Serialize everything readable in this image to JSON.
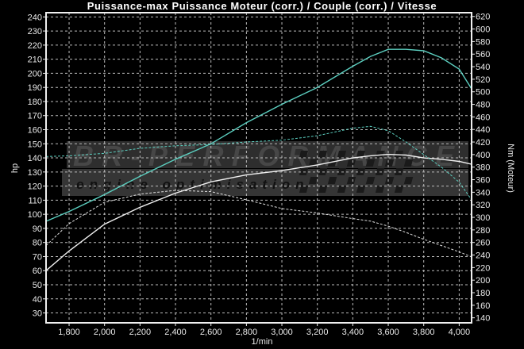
{
  "chart_data": {
    "type": "line",
    "title": "Puissance-max Puissance Moteur (corr.) / Couple (corr.) / Vitesse",
    "xlabel": "1/min",
    "ylabel": "hp",
    "y2label": "Nm (Moteur)",
    "xlim": [
      1670,
      4070
    ],
    "ylim": [
      23,
      243
    ],
    "y2lim": [
      132,
      626
    ],
    "grid": true,
    "x_ticks": [
      1800,
      2000,
      2200,
      2400,
      2600,
      2800,
      3000,
      3200,
      3400,
      3600,
      3800,
      4000
    ],
    "x_tick_labels": [
      "1,800",
      "2,000",
      "2,200",
      "2,400",
      "2,600",
      "2,800",
      "3,000",
      "3,200",
      "3,400",
      "3,600",
      "3,800",
      "4,000"
    ],
    "y_ticks": [
      30,
      40,
      50,
      60,
      70,
      80,
      90,
      100,
      110,
      120,
      130,
      140,
      150,
      160,
      170,
      180,
      190,
      200,
      210,
      220,
      230,
      240
    ],
    "y_tick_labels": [
      "30",
      "40",
      "50",
      "60",
      "70",
      "80",
      "90",
      "100",
      "110",
      "120",
      "130",
      "140",
      "150",
      "160",
      "170",
      "180",
      "190",
      "200",
      "210",
      "220",
      "230",
      "240"
    ],
    "y2_ticks": [
      140,
      160,
      180,
      200,
      220,
      240,
      260,
      280,
      300,
      320,
      340,
      360,
      380,
      400,
      420,
      440,
      460,
      480,
      500,
      520,
      540,
      560,
      580,
      600,
      620
    ],
    "y2_tick_labels": [
      "140",
      "160",
      "180",
      "200",
      "220",
      "240",
      "260",
      "280",
      "300",
      "320",
      "340",
      "360",
      "380",
      "400",
      "420",
      "440",
      "460",
      "480",
      "500",
      "520",
      "540",
      "560",
      "580",
      "600",
      "620"
    ],
    "x": [
      1670,
      1800,
      2000,
      2200,
      2400,
      2600,
      2800,
      3000,
      3200,
      3400,
      3500,
      3600,
      3700,
      3800,
      3900,
      4000,
      4070
    ],
    "series": [
      {
        "axis": "left",
        "style": "solid",
        "color": "#5ccfc0",
        "values": [
          95,
          102,
          114,
          127,
          139,
          150,
          165,
          178,
          190,
          205,
          212,
          217,
          217,
          216,
          211,
          203,
          189
        ]
      },
      {
        "axis": "left",
        "style": "solid",
        "color": "#f0f0f0",
        "values": [
          60,
          74,
          93,
          105,
          115,
          123,
          128,
          131,
          135,
          140,
          141.5,
          142.5,
          142,
          140,
          139,
          137.5,
          135.5
        ]
      },
      {
        "axis": "right",
        "style": "dashed",
        "color": "#5ccfc0",
        "values": [
          397,
          398,
          402,
          410,
          414,
          416,
          420,
          423,
          430,
          442,
          445,
          438,
          420,
          400,
          380,
          356,
          328
        ]
      },
      {
        "axis": "right",
        "style": "dashed",
        "color": "#e0e0e0",
        "values": [
          255,
          290,
          324,
          337,
          343,
          341,
          328,
          314,
          307,
          298,
          294,
          286,
          276,
          265,
          255,
          245,
          237
        ]
      }
    ]
  },
  "logo": {
    "brand": "BR-PERFORMANCE",
    "tagline": "engine optimisation"
  }
}
